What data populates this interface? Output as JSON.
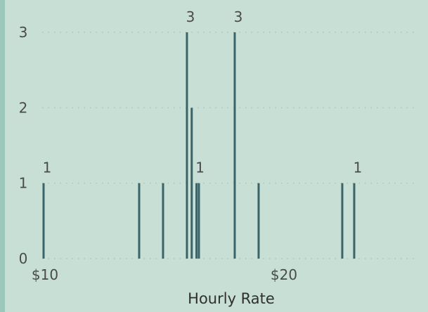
{
  "chart_data": {
    "type": "bar",
    "xlabel": "Hourly Rate",
    "ylabel": "",
    "x_ticks": [
      {
        "value": 10,
        "label": "$10"
      },
      {
        "value": 20,
        "label": "$20"
      }
    ],
    "xlim": [
      10,
      25.5
    ],
    "y_ticks": [
      0,
      1,
      2,
      3
    ],
    "ylim": [
      0,
      3
    ],
    "grid": "horizontal dotted",
    "series": [
      {
        "points": [
          {
            "x": 10.0,
            "y": 1,
            "label": "1"
          },
          {
            "x": 14.0,
            "y": 1
          },
          {
            "x": 15.0,
            "y": 1
          },
          {
            "x": 16.0,
            "y": 3,
            "label": "3"
          },
          {
            "x": 16.2,
            "y": 2
          },
          {
            "x": 16.4,
            "y": 1,
            "label": "1"
          },
          {
            "x": 16.5,
            "y": 1
          },
          {
            "x": 18.0,
            "y": 3,
            "label": "3"
          },
          {
            "x": 19.0,
            "y": 1
          },
          {
            "x": 22.5,
            "y": 1
          },
          {
            "x": 23.0,
            "y": 1,
            "label": "1"
          }
        ]
      }
    ],
    "colors": {
      "bar": "#3b6469",
      "grid": "#a8c6bc",
      "text": "#4a4a4a",
      "left_accent": "#9cc7bb"
    }
  }
}
